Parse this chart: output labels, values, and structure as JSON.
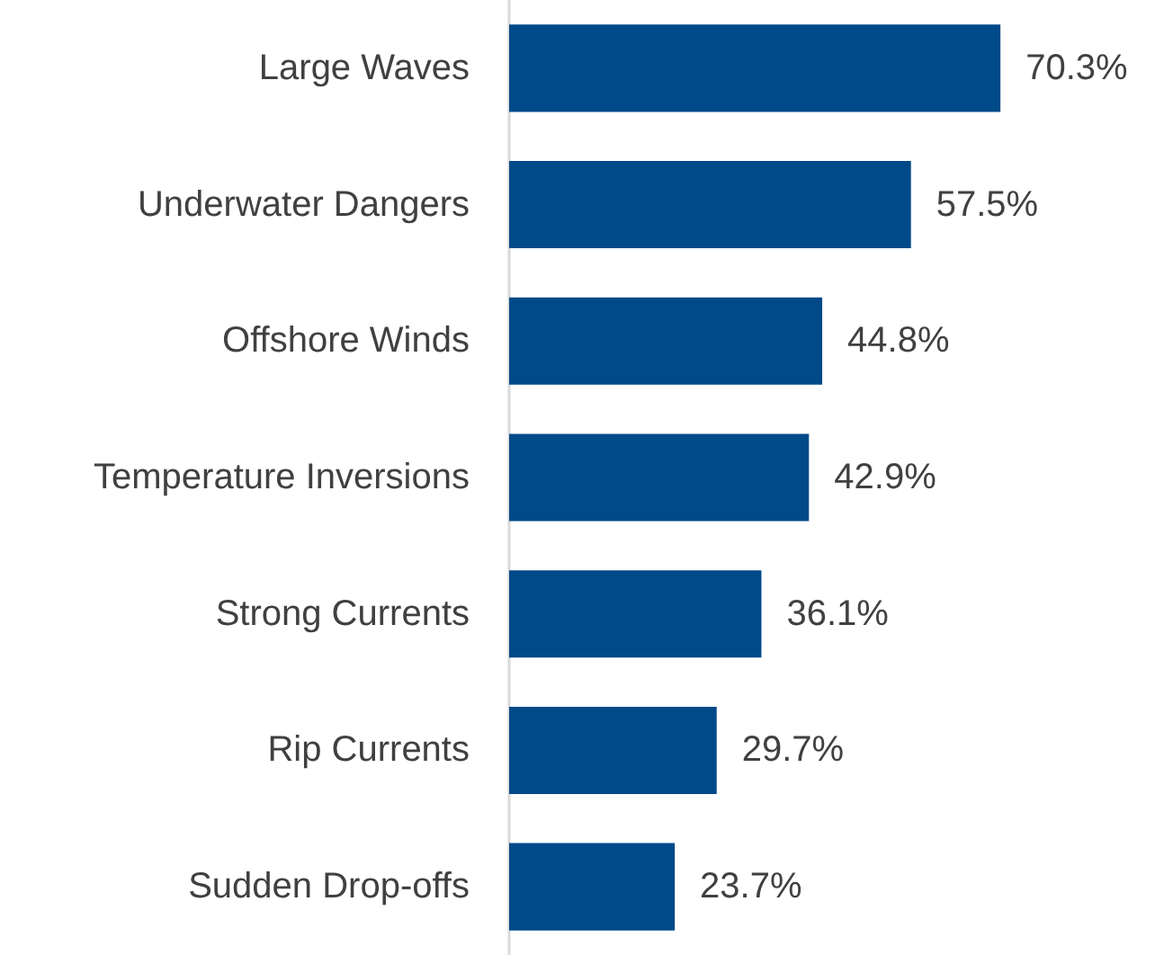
{
  "chart_data": {
    "type": "bar",
    "orientation": "horizontal",
    "categories": [
      "Large Waves",
      "Underwater Dangers",
      "Offshore Winds",
      "Temperature Inversions",
      "Strong Currents",
      "Rip Currents",
      "Sudden Drop-offs"
    ],
    "values": [
      70.3,
      57.5,
      44.8,
      42.9,
      36.1,
      29.7,
      23.7
    ],
    "value_labels": [
      "70.3%",
      "57.5%",
      "44.8%",
      "42.9%",
      "36.1%",
      "29.7%",
      "23.7%"
    ],
    "color": "#004a89"
  }
}
